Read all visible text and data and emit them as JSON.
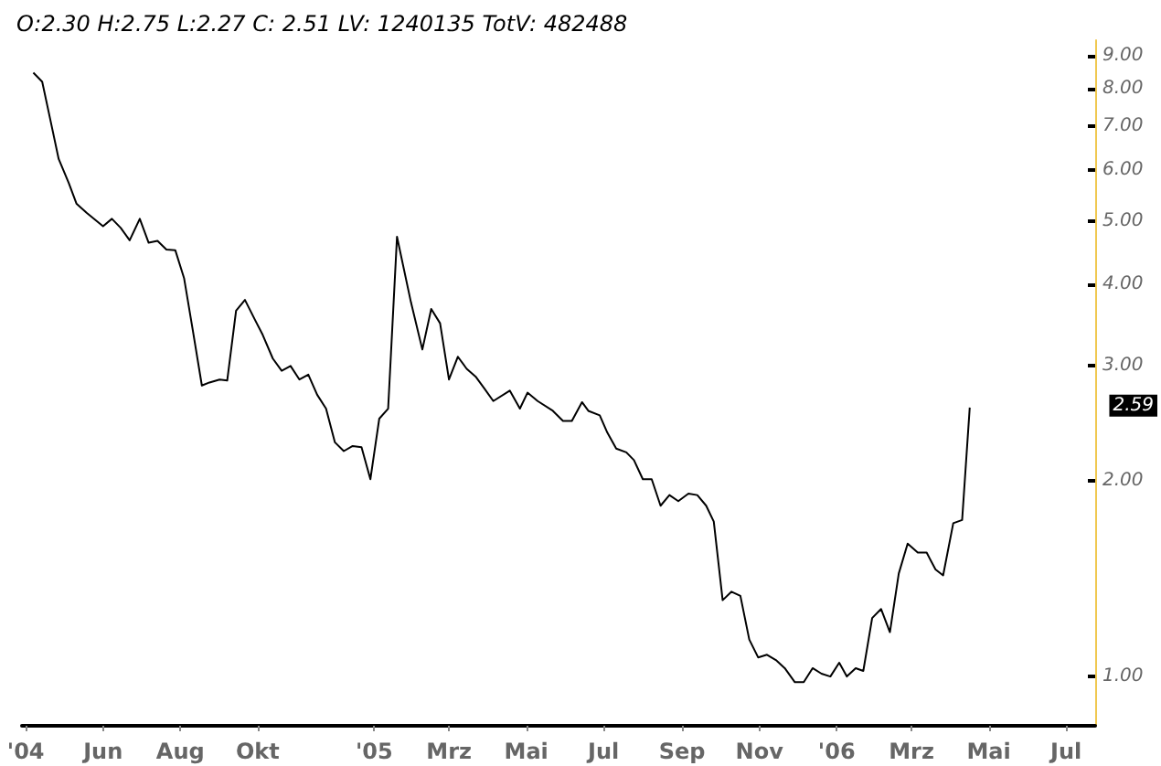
{
  "chart_data": {
    "type": "line",
    "title": "O:2.30 H:2.75 L:2.27 C: 2.51 LV: 1240135 TotV: 482488",
    "x": [
      "2004-04-07",
      "2004-04-14",
      "2004-04-21",
      "2004-04-27",
      "2004-05-05",
      "2004-05-11",
      "2004-05-19",
      "2004-06-01",
      "2004-06-08",
      "2004-06-15",
      "2004-06-22",
      "2004-06-30",
      "2004-07-07",
      "2004-07-14",
      "2004-07-21",
      "2004-07-28",
      "2004-08-04",
      "2004-08-11",
      "2004-08-18",
      "2004-08-24",
      "2004-09-01",
      "2004-09-07",
      "2004-09-14",
      "2004-09-21",
      "2004-09-29",
      "2004-10-05",
      "2004-10-13",
      "2004-10-20",
      "2004-10-27",
      "2004-11-03",
      "2004-11-10",
      "2004-11-17",
      "2004-11-24",
      "2004-12-01",
      "2004-12-08",
      "2004-12-15",
      "2004-12-22",
      "2004-12-29",
      "2005-01-05",
      "2005-01-12",
      "2005-01-19",
      "2005-01-30",
      "2005-02-08",
      "2005-02-15",
      "2005-02-22",
      "2005-03-01",
      "2005-03-08",
      "2005-03-15",
      "2005-03-22",
      "2005-03-29",
      "2005-04-05",
      "2005-04-18",
      "2005-04-26",
      "2005-05-02",
      "2005-05-10",
      "2005-05-22",
      "2005-05-30",
      "2005-06-06",
      "2005-06-14",
      "2005-06-19",
      "2005-06-28",
      "2005-07-04",
      "2005-07-11",
      "2005-07-19",
      "2005-07-25",
      "2005-08-01",
      "2005-08-08",
      "2005-08-15",
      "2005-08-22",
      "2005-08-29",
      "2005-09-06",
      "2005-09-13",
      "2005-09-20",
      "2005-09-26",
      "2005-10-03",
      "2005-10-10",
      "2005-10-17",
      "2005-10-24",
      "2005-10-31",
      "2005-11-07",
      "2005-11-14",
      "2005-11-21",
      "2005-11-29",
      "2005-12-06",
      "2005-12-13",
      "2005-12-20",
      "2005-12-27",
      "2006-01-03",
      "2006-01-09",
      "2006-01-16",
      "2006-01-22",
      "2006-01-29",
      "2006-02-05",
      "2006-02-12",
      "2006-02-19",
      "2006-02-26",
      "2006-03-06",
      "2006-03-13",
      "2006-03-20",
      "2006-03-26",
      "2006-04-03",
      "2006-04-10",
      "2006-04-16"
    ],
    "series": [
      {
        "color": "#000000",
        "values": [
          8.47,
          8.2,
          7.08,
          6.24,
          5.73,
          5.33,
          5.16,
          4.92,
          5.05,
          4.89,
          4.68,
          5.05,
          4.64,
          4.67,
          4.53,
          4.52,
          4.09,
          3.39,
          2.8,
          2.83,
          2.86,
          2.85,
          3.65,
          3.79,
          3.53,
          3.35,
          3.08,
          2.95,
          3.0,
          2.86,
          2.91,
          2.71,
          2.58,
          2.29,
          2.22,
          2.26,
          2.25,
          2.01,
          2.49,
          2.58,
          4.74,
          3.76,
          3.18,
          3.67,
          3.49,
          2.86,
          3.1,
          2.97,
          2.89,
          2.77,
          2.65,
          2.75,
          2.58,
          2.73,
          2.65,
          2.56,
          2.47,
          2.47,
          2.64,
          2.56,
          2.52,
          2.37,
          2.24,
          2.21,
          2.15,
          2.01,
          2.01,
          1.83,
          1.9,
          1.86,
          1.91,
          1.9,
          1.83,
          1.73,
          1.31,
          1.35,
          1.33,
          1.14,
          1.07,
          1.08,
          1.06,
          1.03,
          0.98,
          0.98,
          1.03,
          1.01,
          1.0,
          1.05,
          1.0,
          1.03,
          1.02,
          1.23,
          1.27,
          1.17,
          1.44,
          1.6,
          1.55,
          1.55,
          1.46,
          1.43,
          1.72,
          1.74,
          2.59
        ]
      }
    ],
    "xlim": [
      "2004-03-29",
      "2006-07-24"
    ],
    "xticks": [
      {
        "value": "2004-04-01",
        "label": "'04"
      },
      {
        "value": "2004-06-01",
        "label": "Jun"
      },
      {
        "value": "2004-08-01",
        "label": "Aug"
      },
      {
        "value": "2004-10-01",
        "label": "Okt"
      },
      {
        "value": "2005-01-01",
        "label": "'05"
      },
      {
        "value": "2005-03-01",
        "label": "Mrz"
      },
      {
        "value": "2005-05-01",
        "label": "Mai"
      },
      {
        "value": "2005-07-01",
        "label": "Jul"
      },
      {
        "value": "2005-09-01",
        "label": "Sep"
      },
      {
        "value": "2005-11-01",
        "label": "Nov"
      },
      {
        "value": "2006-01-01",
        "label": "'06"
      },
      {
        "value": "2006-03-01",
        "label": "Mrz"
      },
      {
        "value": "2006-05-01",
        "label": "Mai"
      },
      {
        "value": "2006-07-01",
        "label": "Jul"
      }
    ],
    "ylim": [
      0.84,
      9.5
    ],
    "yticks": [
      {
        "value": 1,
        "label": "1.00"
      },
      {
        "value": 2,
        "label": "2.00"
      },
      {
        "value": 3,
        "label": "3.00"
      },
      {
        "value": 4,
        "label": "4.00"
      },
      {
        "value": 5,
        "label": "5.00"
      },
      {
        "value": 6,
        "label": "6.00"
      },
      {
        "value": 7,
        "label": "7.00"
      },
      {
        "value": 8,
        "label": "8.00"
      },
      {
        "value": 9,
        "label": "9.00"
      }
    ],
    "log": true,
    "annotations": [
      "2.59"
    ]
  }
}
